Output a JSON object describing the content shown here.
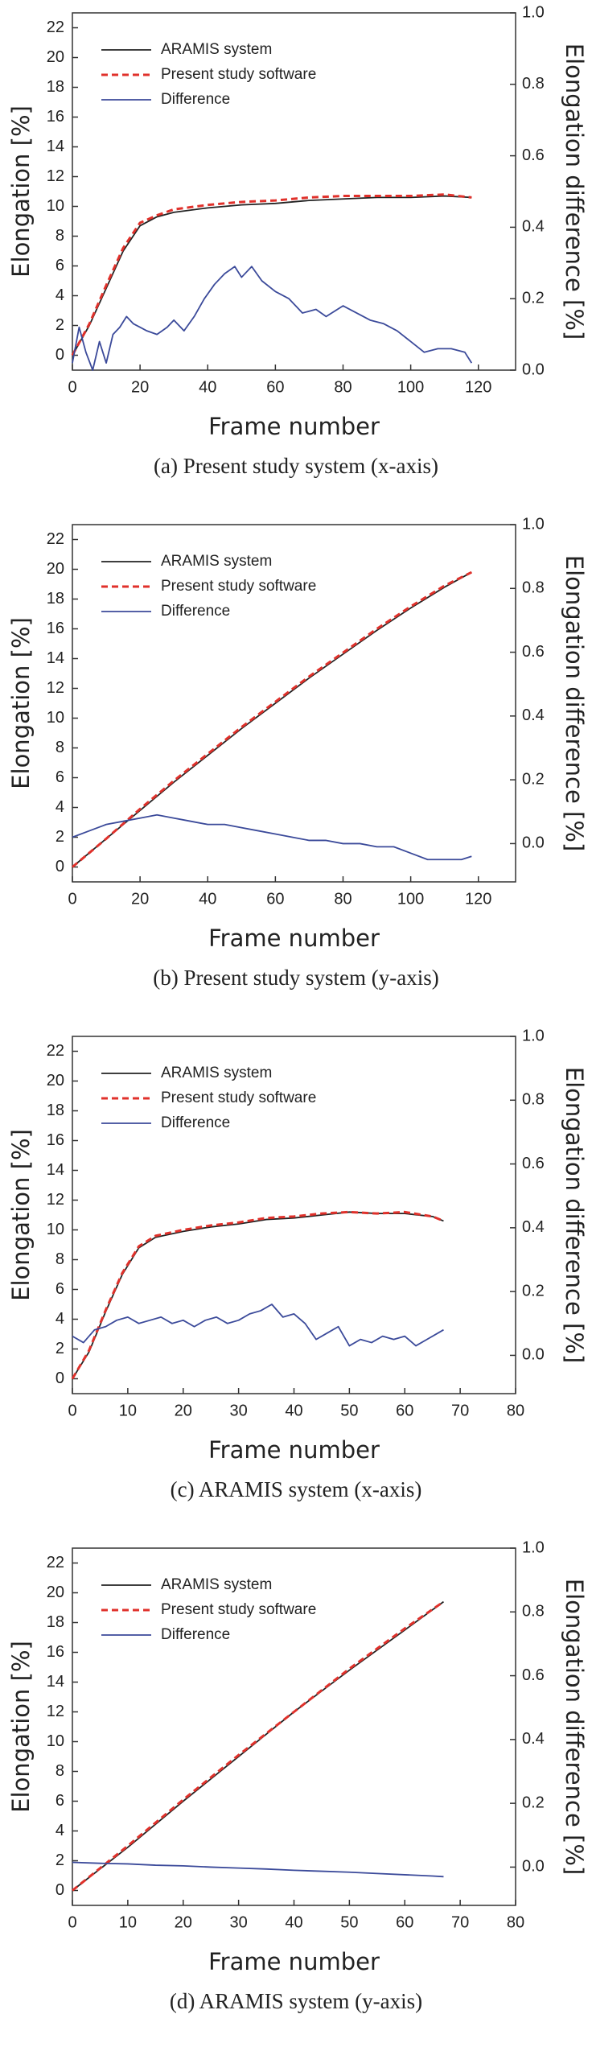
{
  "chart_data": [
    {
      "type": "line",
      "caption": "(a) Present study system (x-axis)",
      "xlabel": "Frame number",
      "ylabel": "Elongation [%]",
      "y2label": "Elongation difference [%]",
      "xlim": [
        0,
        131
      ],
      "xticks": [
        0,
        20,
        40,
        60,
        80,
        100,
        120
      ],
      "ylim": [
        -1,
        23
      ],
      "yticks": [
        0,
        2,
        4,
        6,
        8,
        10,
        12,
        14,
        16,
        18,
        20,
        22
      ],
      "y2lim": [
        0,
        1
      ],
      "y2ticks": [
        {
          "value": 0,
          "label": "0.0"
        },
        {
          "value": 0.2,
          "label": "0.2"
        },
        {
          "value": 0.4,
          "label": "0.4"
        },
        {
          "value": 0.6,
          "label": "0.6"
        },
        {
          "value": 0.8,
          "label": "0.8"
        },
        {
          "value": 1,
          "label": "1.0"
        }
      ],
      "series": [
        {
          "name": "ARAMIS system",
          "color": "#222222",
          "linestyle": "solid",
          "x": [
            0,
            5,
            10,
            15,
            20,
            25,
            30,
            40,
            50,
            60,
            70,
            80,
            90,
            100,
            110,
            118
          ],
          "values": [
            0,
            2,
            4.5,
            7,
            8.7,
            9.3,
            9.6,
            9.9,
            10.1,
            10.2,
            10.4,
            10.5,
            10.6,
            10.6,
            10.7,
            10.6
          ]
        },
        {
          "name": "Present study software",
          "color": "#e0312b",
          "linestyle": "dashed",
          "x": [
            0,
            5,
            10,
            15,
            20,
            25,
            30,
            40,
            50,
            60,
            70,
            80,
            90,
            100,
            110,
            118
          ],
          "values": [
            0,
            2.1,
            4.7,
            7.2,
            8.9,
            9.4,
            9.8,
            10.1,
            10.3,
            10.4,
            10.6,
            10.7,
            10.7,
            10.7,
            10.8,
            10.6
          ]
        },
        {
          "name": "Difference",
          "color": "#3b4a9a",
          "linestyle": "solid",
          "axis": "y2",
          "x": [
            0,
            2,
            4,
            6,
            8,
            10,
            12,
            14,
            16,
            18,
            20,
            22,
            25,
            28,
            30,
            33,
            36,
            39,
            42,
            45,
            48,
            50,
            53,
            56,
            60,
            64,
            68,
            72,
            75,
            80,
            84,
            88,
            92,
            96,
            100,
            104,
            108,
            112,
            116,
            118
          ],
          "values": [
            0.02,
            0.12,
            0.05,
            0,
            0.08,
            0.02,
            0.1,
            0.12,
            0.15,
            0.13,
            0.12,
            0.11,
            0.1,
            0.12,
            0.14,
            0.11,
            0.15,
            0.2,
            0.24,
            0.27,
            0.29,
            0.26,
            0.29,
            0.25,
            0.22,
            0.2,
            0.16,
            0.17,
            0.15,
            0.18,
            0.16,
            0.14,
            0.13,
            0.11,
            0.08,
            0.05,
            0.06,
            0.06,
            0.05,
            0.02
          ]
        }
      ]
    },
    {
      "type": "line",
      "caption": "(b) Present study system (y-axis)",
      "xlabel": "Frame number",
      "ylabel": "Elongation [%]",
      "y2label": "Elongation difference [%]",
      "xlim": [
        0,
        131
      ],
      "xticks": [
        0,
        20,
        40,
        60,
        80,
        100,
        120
      ],
      "ylim": [
        -1,
        23
      ],
      "yticks": [
        0,
        2,
        4,
        6,
        8,
        10,
        12,
        14,
        16,
        18,
        20,
        22
      ],
      "y2lim": [
        -0.12,
        1
      ],
      "y2ticks": [
        {
          "value": 0,
          "label": "0.0"
        },
        {
          "value": 0.2,
          "label": "0.2"
        },
        {
          "value": 0.4,
          "label": "0.4"
        },
        {
          "value": 0.6,
          "label": "0.6"
        },
        {
          "value": 0.8,
          "label": "0.8"
        },
        {
          "value": 1,
          "label": "1.0"
        }
      ],
      "series": [
        {
          "name": "ARAMIS system",
          "color": "#222222",
          "linestyle": "solid",
          "x": [
            0,
            10,
            20,
            30,
            40,
            50,
            60,
            70,
            80,
            90,
            100,
            110,
            118
          ],
          "values": [
            0,
            1.9,
            3.8,
            5.7,
            7.5,
            9.3,
            11,
            12.7,
            14.3,
            15.9,
            17.4,
            18.8,
            19.8
          ]
        },
        {
          "name": "Present study software",
          "color": "#e0312b",
          "linestyle": "dashed",
          "x": [
            0,
            10,
            20,
            30,
            40,
            50,
            60,
            70,
            80,
            90,
            100,
            110,
            118
          ],
          "values": [
            0,
            1.9,
            3.9,
            5.8,
            7.6,
            9.4,
            11.1,
            12.8,
            14.4,
            16,
            17.5,
            18.9,
            19.8
          ]
        },
        {
          "name": "Difference",
          "color": "#3b4a9a",
          "linestyle": "solid",
          "axis": "y2",
          "x": [
            0,
            5,
            10,
            15,
            20,
            25,
            30,
            35,
            40,
            45,
            50,
            55,
            60,
            65,
            70,
            75,
            80,
            85,
            90,
            95,
            100,
            105,
            110,
            115,
            118
          ],
          "values": [
            0.02,
            0.04,
            0.06,
            0.07,
            0.08,
            0.09,
            0.08,
            0.07,
            0.06,
            0.06,
            0.05,
            0.04,
            0.03,
            0.02,
            0.01,
            0.01,
            0,
            0,
            -0.01,
            -0.01,
            -0.03,
            -0.05,
            -0.05,
            -0.05,
            -0.04
          ]
        }
      ]
    },
    {
      "type": "line",
      "caption": "(c) ARAMIS system (x-axis)",
      "xlabel": "Frame number",
      "ylabel": "Elongation [%]",
      "y2label": "Elongation difference [%]",
      "xlim": [
        0,
        80
      ],
      "xticks": [
        0,
        10,
        20,
        30,
        40,
        50,
        60,
        70,
        80
      ],
      "ylim": [
        -1,
        23
      ],
      "yticks": [
        0,
        2,
        4,
        6,
        8,
        10,
        12,
        14,
        16,
        18,
        20,
        22
      ],
      "y2lim": [
        -0.12,
        1
      ],
      "y2ticks": [
        {
          "value": 0,
          "label": "0.0"
        },
        {
          "value": 0.2,
          "label": "0.2"
        },
        {
          "value": 0.4,
          "label": "0.4"
        },
        {
          "value": 0.6,
          "label": "0.6"
        },
        {
          "value": 0.8,
          "label": "0.8"
        },
        {
          "value": 1,
          "label": "1.0"
        }
      ],
      "series": [
        {
          "name": "ARAMIS system",
          "color": "#222222",
          "linestyle": "solid",
          "x": [
            0,
            3,
            6,
            9,
            12,
            15,
            20,
            25,
            30,
            35,
            40,
            45,
            50,
            55,
            60,
            65,
            67
          ],
          "values": [
            0,
            1.8,
            4.5,
            7,
            8.8,
            9.5,
            9.9,
            10.2,
            10.4,
            10.7,
            10.8,
            11,
            11.2,
            11.1,
            11.1,
            10.9,
            10.6
          ]
        },
        {
          "name": "Present study software",
          "color": "#e0312b",
          "linestyle": "dashed",
          "x": [
            0,
            3,
            6,
            9,
            12,
            15,
            20,
            25,
            30,
            35,
            40,
            45,
            50,
            55,
            60,
            65,
            67
          ],
          "values": [
            0,
            1.9,
            4.6,
            7.1,
            8.9,
            9.6,
            10,
            10.3,
            10.5,
            10.8,
            10.9,
            11.1,
            11.2,
            11.1,
            11.2,
            10.9,
            10.6
          ]
        },
        {
          "name": "Difference",
          "color": "#3b4a9a",
          "linestyle": "solid",
          "axis": "y2",
          "x": [
            0,
            2,
            4,
            6,
            8,
            10,
            12,
            14,
            16,
            18,
            20,
            22,
            24,
            26,
            28,
            30,
            32,
            34,
            36,
            38,
            40,
            42,
            44,
            46,
            48,
            50,
            52,
            54,
            56,
            58,
            60,
            62,
            64,
            66,
            67
          ],
          "values": [
            0.06,
            0.04,
            0.08,
            0.09,
            0.11,
            0.12,
            0.1,
            0.11,
            0.12,
            0.1,
            0.11,
            0.09,
            0.11,
            0.12,
            0.1,
            0.11,
            0.13,
            0.14,
            0.16,
            0.12,
            0.13,
            0.1,
            0.05,
            0.07,
            0.09,
            0.03,
            0.05,
            0.04,
            0.06,
            0.05,
            0.06,
            0.03,
            0.05,
            0.07,
            0.08
          ]
        }
      ]
    },
    {
      "type": "line",
      "caption": "(d) ARAMIS system (y-axis)",
      "xlabel": "Frame number",
      "ylabel": "Elongation [%]",
      "y2label": "Elongation difference [%]",
      "xlim": [
        0,
        80
      ],
      "xticks": [
        0,
        10,
        20,
        30,
        40,
        50,
        60,
        70,
        80
      ],
      "ylim": [
        -1,
        23
      ],
      "yticks": [
        0,
        2,
        4,
        6,
        8,
        10,
        12,
        14,
        16,
        18,
        20,
        22
      ],
      "y2lim": [
        -0.12,
        1
      ],
      "y2ticks": [
        {
          "value": 0,
          "label": "0.0"
        },
        {
          "value": 0.2,
          "label": "0.2"
        },
        {
          "value": 0.4,
          "label": "0.4"
        },
        {
          "value": 0.6,
          "label": "0.6"
        },
        {
          "value": 0.8,
          "label": "0.8"
        },
        {
          "value": 1,
          "label": "1.0"
        }
      ],
      "series": [
        {
          "name": "ARAMIS system",
          "color": "#222222",
          "linestyle": "solid",
          "x": [
            0,
            10,
            20,
            30,
            40,
            50,
            60,
            67
          ],
          "values": [
            0,
            2.9,
            6,
            9,
            12,
            14.8,
            17.5,
            19.4
          ]
        },
        {
          "name": "Present study software",
          "color": "#e0312b",
          "linestyle": "dashed",
          "x": [
            0,
            10,
            20,
            30,
            40,
            50,
            60,
            67
          ],
          "values": [
            0,
            3,
            6.1,
            9.1,
            12,
            14.9,
            17.6,
            19.4
          ]
        },
        {
          "name": "Difference",
          "color": "#3b4a9a",
          "linestyle": "solid",
          "axis": "y2",
          "x": [
            0,
            5,
            10,
            15,
            20,
            25,
            30,
            35,
            40,
            45,
            50,
            55,
            60,
            65,
            67
          ],
          "values": [
            0.015,
            0.012,
            0.01,
            0.006,
            0.004,
            0,
            -0.003,
            -0.006,
            -0.01,
            -0.013,
            -0.016,
            -0.02,
            -0.024,
            -0.028,
            -0.03
          ]
        }
      ]
    }
  ]
}
